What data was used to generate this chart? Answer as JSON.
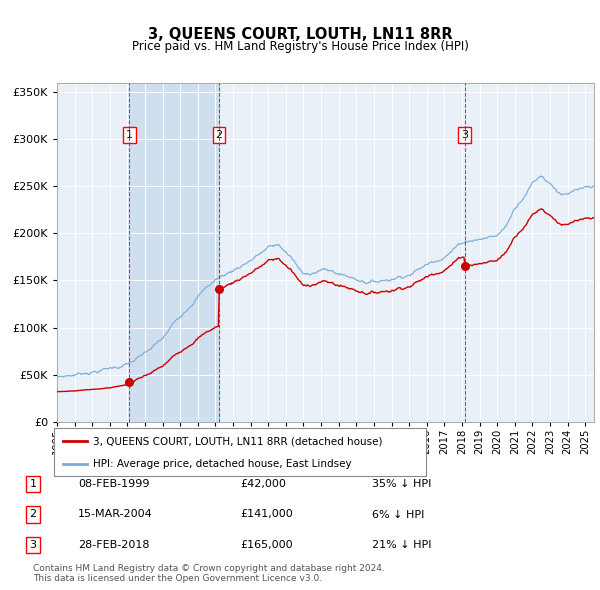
{
  "title": "3, QUEENS COURT, LOUTH, LN11 8RR",
  "subtitle": "Price paid vs. HM Land Registry's House Price Index (HPI)",
  "transactions": [
    {
      "num": 1,
      "date": "08-FEB-1999",
      "price": 42000,
      "pct": "35%",
      "direction": "↓",
      "date_val": 1999.11
    },
    {
      "num": 2,
      "date": "15-MAR-2004",
      "price": 141000,
      "pct": "6%",
      "direction": "↓",
      "date_val": 2004.2
    },
    {
      "num": 3,
      "date": "28-FEB-2018",
      "price": 165000,
      "pct": "21%",
      "direction": "↓",
      "date_val": 2018.16
    }
  ],
  "legend_entries": [
    "3, QUEENS COURT, LOUTH, LN11 8RR (detached house)",
    "HPI: Average price, detached house, East Lindsey"
  ],
  "footer": "Contains HM Land Registry data © Crown copyright and database right 2024.\nThis data is licensed under the Open Government Licence v3.0.",
  "hpi_color": "#7aacda",
  "price_color": "#cc0000",
  "ylim": [
    0,
    360000
  ],
  "xlim_start": 1995.0,
  "xlim_end": 2025.5,
  "plot_bg": "#eaf0f8",
  "shade_color": "#d0dff0"
}
